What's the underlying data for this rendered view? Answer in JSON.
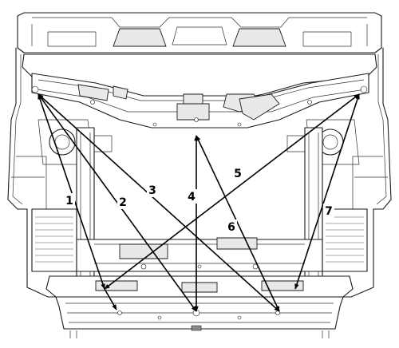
{
  "diagram": {
    "labels": [
      "1",
      "2",
      "3",
      "4",
      "5",
      "6",
      "7"
    ]
  }
}
